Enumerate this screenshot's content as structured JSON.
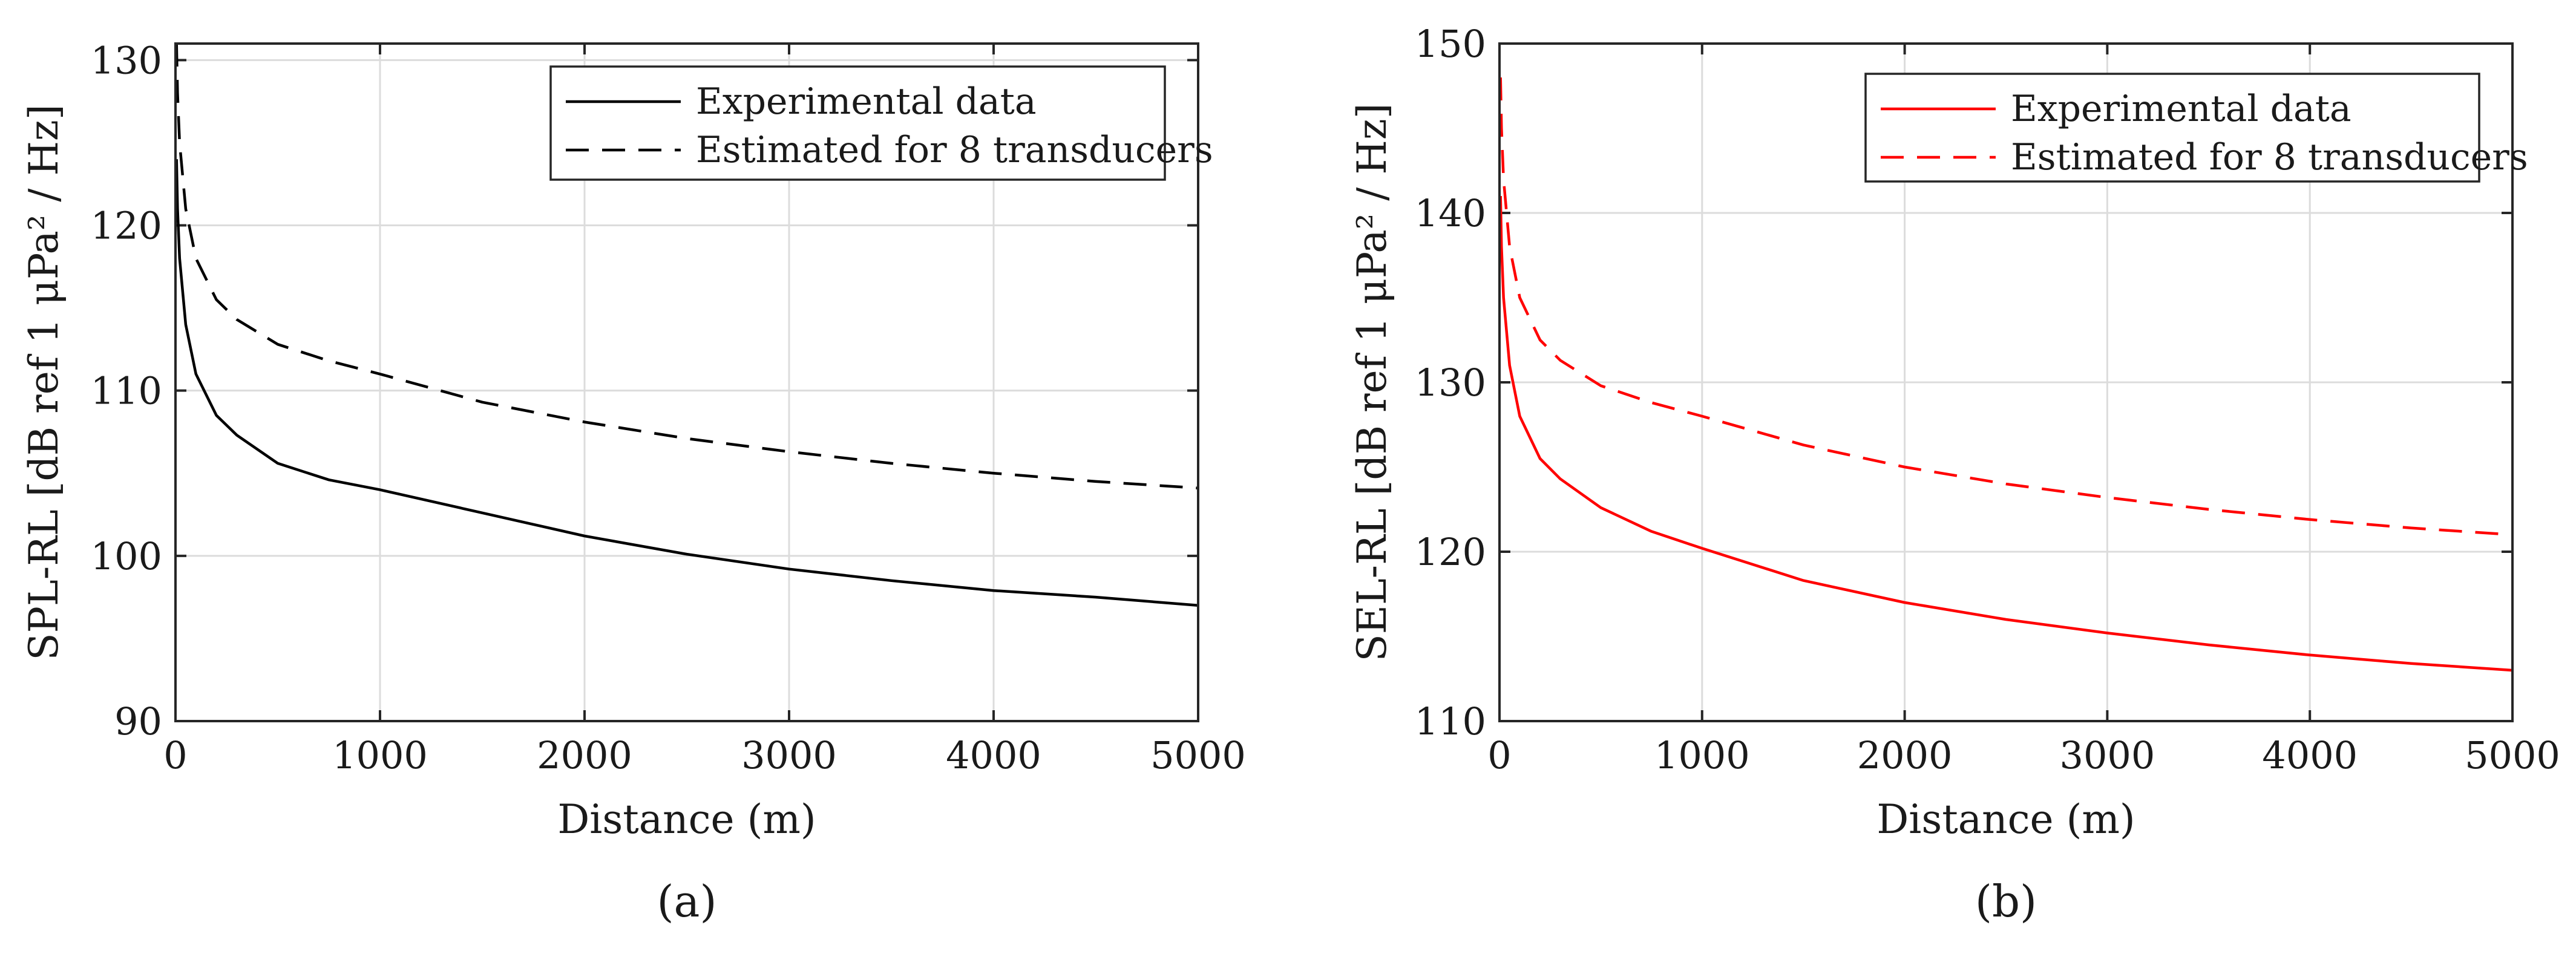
{
  "chart_data": [
    {
      "type": "line",
      "panel_label": "(a)",
      "xlabel": "Distance (m)",
      "ylabel": "SPL-RL [dB ref 1 μPa² / Hz]",
      "xlim": [
        0,
        5000
      ],
      "ylim": [
        90,
        131
      ],
      "xticks": [
        0,
        1000,
        2000,
        3000,
        4000,
        5000
      ],
      "yticks": [
        90,
        100,
        110,
        120,
        130
      ],
      "grid": true,
      "legend_position": "top-right",
      "series": [
        {
          "name": "Experimental data",
          "style": "solid",
          "color": "#000000",
          "x": [
            5,
            10,
            20,
            50,
            100,
            200,
            300,
            500,
            750,
            1000,
            1500,
            2000,
            2500,
            3000,
            3500,
            4000,
            4500,
            5000
          ],
          "y": [
            124,
            121,
            118,
            114,
            111,
            108.5,
            107.3,
            105.6,
            104.6,
            104,
            102.6,
            101.2,
            100.1,
            99.2,
            98.5,
            97.9,
            97.5,
            97
          ]
        },
        {
          "name": "Estimated for 8 transducers",
          "style": "dashed",
          "color": "#000000",
          "x": [
            5,
            10,
            20,
            50,
            100,
            200,
            300,
            500,
            750,
            1000,
            1500,
            2000,
            2500,
            3000,
            3500,
            4000,
            4500,
            5000
          ],
          "y": [
            131,
            128,
            125,
            121,
            118,
            115.5,
            114.3,
            112.8,
            111.8,
            111,
            109.3,
            108.1,
            107.1,
            106.3,
            105.6,
            105,
            104.5,
            104.1
          ]
        }
      ]
    },
    {
      "type": "line",
      "panel_label": "(b)",
      "xlabel": "Distance (m)",
      "ylabel": "SEL-RL [dB ref 1 μPa² / Hz]",
      "xlim": [
        0,
        5000
      ],
      "ylim": [
        110,
        150
      ],
      "xticks": [
        0,
        1000,
        2000,
        3000,
        4000,
        5000
      ],
      "yticks": [
        110,
        120,
        130,
        140,
        150
      ],
      "grid": true,
      "legend_position": "top-right",
      "series": [
        {
          "name": "Experimental data",
          "style": "solid",
          "color": "#ff0000",
          "x": [
            5,
            10,
            20,
            50,
            100,
            200,
            300,
            500,
            750,
            1000,
            1500,
            2000,
            2500,
            3000,
            3500,
            4000,
            4500,
            5000
          ],
          "y": [
            141,
            138,
            135,
            131,
            128,
            125.5,
            124.3,
            122.6,
            121.2,
            120.2,
            118.3,
            117,
            116,
            115.2,
            114.5,
            113.9,
            113.4,
            113
          ]
        },
        {
          "name": "Estimated for 8 transducers",
          "style": "dashed",
          "color": "#ff0000",
          "x": [
            5,
            10,
            20,
            50,
            100,
            200,
            300,
            500,
            750,
            1000,
            1500,
            2000,
            2500,
            3000,
            3500,
            4000,
            4500,
            5000
          ],
          "y": [
            148,
            145,
            142,
            138,
            135,
            132.5,
            131.3,
            129.8,
            128.8,
            128,
            126.3,
            125,
            124,
            123.2,
            122.5,
            121.9,
            121.4,
            121
          ]
        }
      ]
    }
  ]
}
